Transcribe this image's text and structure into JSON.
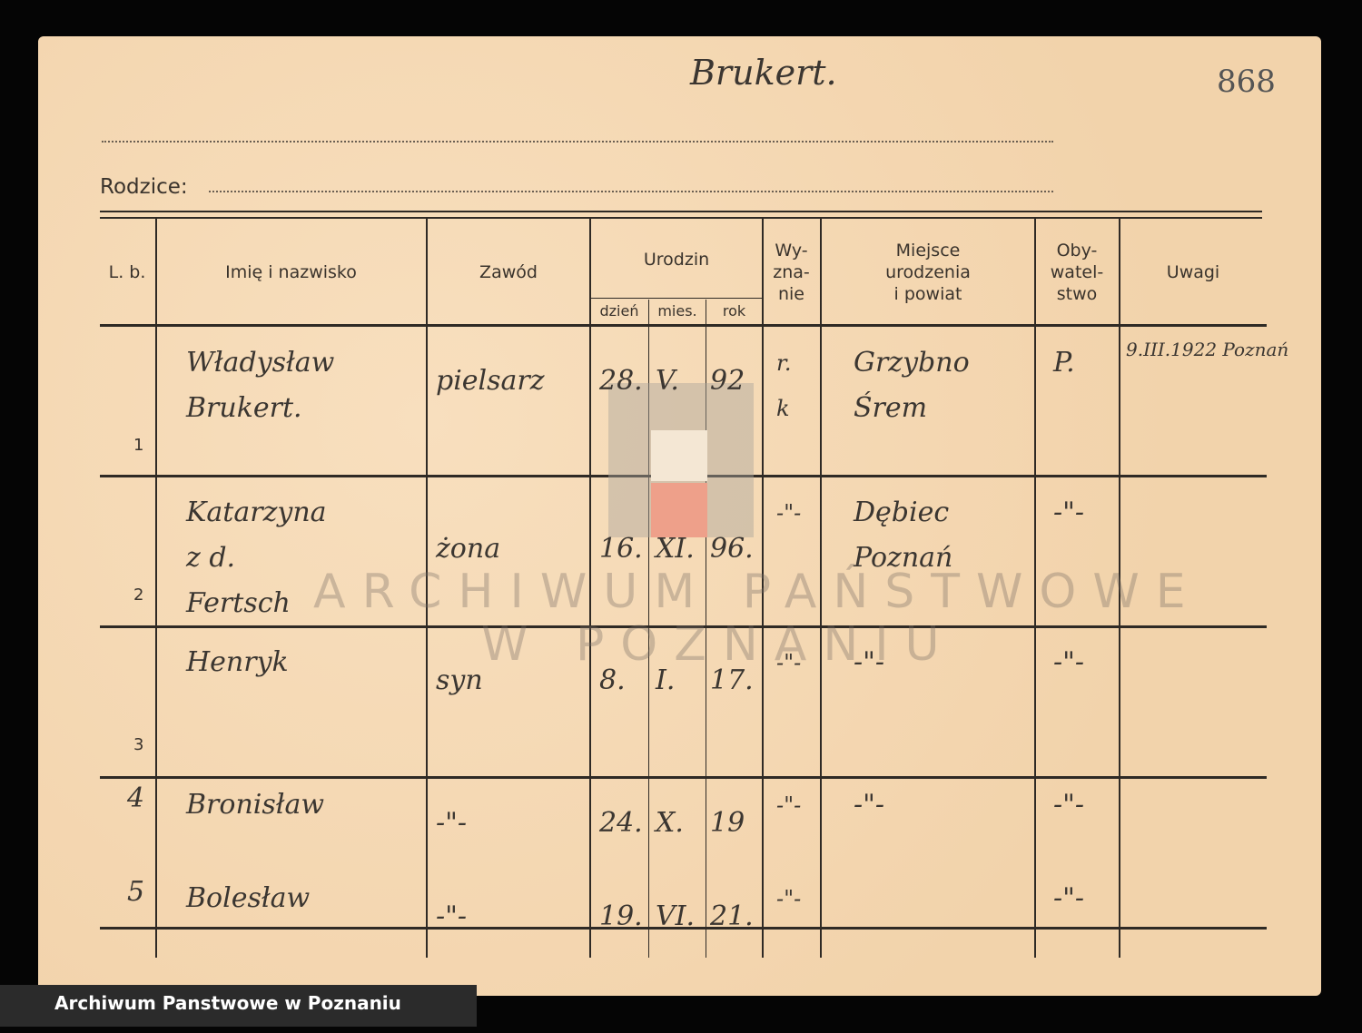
{
  "header": {
    "surname": "Brukert.",
    "card_number": "868",
    "parents_label": "Rodzice:"
  },
  "columns": {
    "lb": "L. b.",
    "name": "Imię i nazwisko",
    "occupation": "Zawód",
    "birth": "Urodzin",
    "day": "dzień",
    "month": "mies.",
    "year": "rok",
    "religion": "Wy-\nzna-\nnie",
    "birthplace": "Miejsce\nurodzenia\ni powiat",
    "citizenship": "Oby-\nwatel-\nstwo",
    "remarks": "Uwagi"
  },
  "rows": [
    {
      "lb": "1",
      "name": "Władysław\nBrukert.",
      "occupation": "pielsarz",
      "day": "28.",
      "month": "V.",
      "year": "92",
      "religion": "r.\nk",
      "birthplace": "Grzybno\nŚrem",
      "citizenship": "P.",
      "remarks": "9.III.1922 Poznań"
    },
    {
      "lb": "2",
      "name": "Katarzyna\nz d.\nFertsch",
      "occupation": "żona",
      "day": "16.",
      "month": "XI.",
      "year": "96.",
      "religion": "-\"-",
      "birthplace": "Dębiec\nPoznań",
      "citizenship": "-\"-",
      "remarks": ""
    },
    {
      "lb": "3",
      "name": "Henryk",
      "occupation": "syn",
      "day": "8.",
      "month": "I.",
      "year": "17.",
      "religion": "-\"-",
      "birthplace": "-\"-",
      "citizenship": "-\"-",
      "remarks": ""
    },
    {
      "lb": "4",
      "name": "Bronisław",
      "occupation": "-\"-",
      "day": "24.",
      "month": "X.",
      "year": "19",
      "religion": "-\"-",
      "birthplace": "-\"-",
      "citizenship": "-\"-",
      "remarks": ""
    },
    {
      "lb": "5",
      "name": "Bolesław",
      "occupation": "-\"-",
      "day": "19.",
      "month": "VI.",
      "year": "21.",
      "religion": "-\"-",
      "birthplace": "",
      "citizenship": "-\"-",
      "remarks": ""
    }
  ],
  "watermark": {
    "line1": "ARCHIWUM PAŃSTWOWE",
    "line2": "W POZNANIU"
  },
  "caption": "Archiwum Panstwowe w Poznaniu",
  "colors": {
    "paper": "#f5d9b4",
    "ink": "#3b3631",
    "background": "#050505"
  }
}
